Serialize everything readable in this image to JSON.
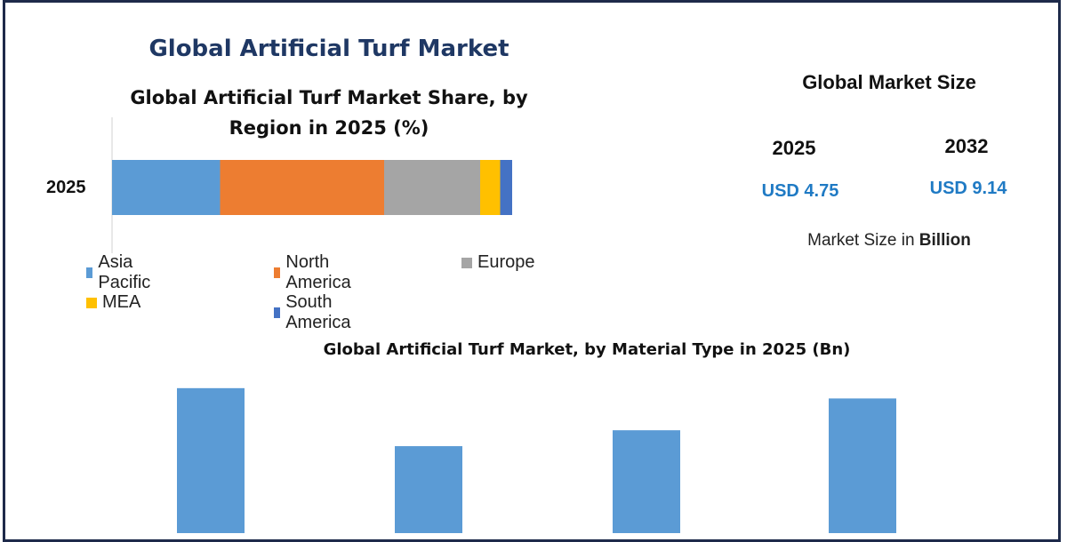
{
  "header": {
    "main_title": "Global Artificial Turf Market"
  },
  "market_size": {
    "title": "Global Market Size",
    "entries": [
      {
        "year": "2025",
        "value": "USD 4.75"
      },
      {
        "year": "2032",
        "value": "USD 9.14"
      }
    ],
    "unit_prefix": "Market Size in",
    "unit_bold": "Billion"
  },
  "colors": {
    "asia_pacific": "#5b9bd5",
    "north_america": "#ed7d31",
    "europe": "#a5a5a5",
    "mea": "#ffc000",
    "south_america": "#4472c4",
    "title_navy": "#1f3864",
    "usd_blue": "#1f7ac4"
  },
  "chart_data": [
    {
      "type": "bar",
      "orientation": "horizontal-stacked",
      "title": "Global Artificial Turf Market Share, by Region in 2025 (%)",
      "categories": [
        "2025"
      ],
      "series": [
        {
          "name": "Asia Pacific",
          "values": [
            27
          ]
        },
        {
          "name": "North America",
          "values": [
            41
          ]
        },
        {
          "name": "Europe",
          "values": [
            24
          ]
        },
        {
          "name": "MEA",
          "values": [
            5
          ]
        },
        {
          "name": "South America",
          "values": [
            3
          ]
        }
      ],
      "legend": "bottom",
      "grid": false
    },
    {
      "type": "bar",
      "title": "Global Artificial Turf Market, by Material Type in 2025 (Bn)",
      "categories": [
        "",
        "",
        "",
        ""
      ],
      "values": [
        1.55,
        0.93,
        1.1,
        1.44
      ],
      "ylim": [
        0,
        1.9
      ],
      "grid": false
    }
  ]
}
